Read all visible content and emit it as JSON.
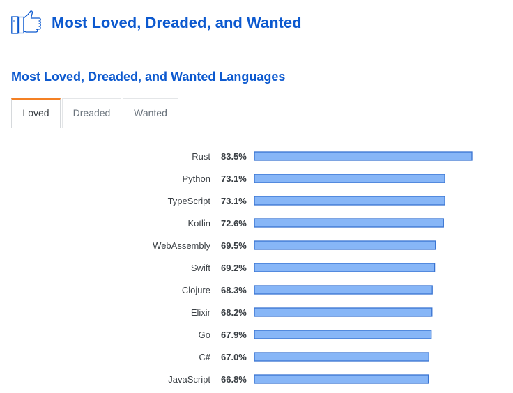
{
  "header": {
    "title": "Most Loved, Dreaded, and Wanted",
    "icon": "thumbs-up-icon"
  },
  "subtitle": "Most Loved, Dreaded, and Wanted Languages",
  "tabs": [
    {
      "label": "Loved",
      "active": true
    },
    {
      "label": "Dreaded",
      "active": false
    },
    {
      "label": "Wanted",
      "active": false
    }
  ],
  "colors": {
    "accent": "#0c59cf",
    "bar_fill": "#87b6f7",
    "bar_stroke": "#3873d1",
    "active_tab_top": "#f48024"
  },
  "chart_data": {
    "type": "bar",
    "orientation": "horizontal",
    "value_suffix": "%",
    "categories": [
      "Rust",
      "Python",
      "TypeScript",
      "Kotlin",
      "WebAssembly",
      "Swift",
      "Clojure",
      "Elixir",
      "Go",
      "C#",
      "JavaScript"
    ],
    "values": [
      83.5,
      73.1,
      73.1,
      72.6,
      69.5,
      69.2,
      68.3,
      68.2,
      67.9,
      67.0,
      66.8
    ],
    "labels": [
      "83.5%",
      "73.1%",
      "73.1%",
      "72.6%",
      "69.5%",
      "69.2%",
      "68.3%",
      "68.2%",
      "67.9%",
      "67.0%",
      "66.8%"
    ],
    "xlim": [
      0,
      83.5
    ],
    "grid": false,
    "legend": "none"
  }
}
